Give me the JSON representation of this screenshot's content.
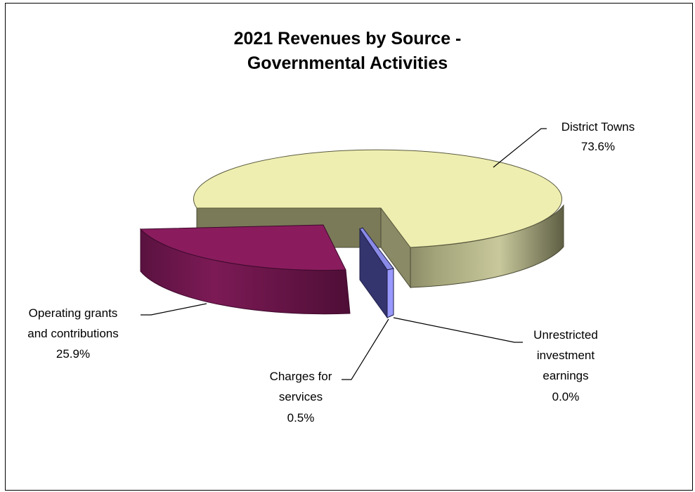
{
  "chart_data": {
    "type": "pie",
    "title_lines": [
      "2021 Revenues by Source -",
      "Governmental Activities"
    ],
    "slices": [
      {
        "name": "District Towns",
        "value": 73.6,
        "label": "73.6%",
        "name_lines": [
          "District Towns"
        ],
        "color": "#eeeeb0"
      },
      {
        "name": "Unrestricted investment earnings",
        "value": 0.0,
        "label": "0.0%",
        "name_lines": [
          "Unrestricted",
          "investment",
          "earnings"
        ],
        "color": "#9999ff"
      },
      {
        "name": "Charges for services",
        "value": 0.5,
        "label": "0.5%",
        "name_lines": [
          "Charges for",
          "services"
        ],
        "color": "#7070e0"
      },
      {
        "name": "Operating grants and contributions",
        "value": 25.9,
        "label": "25.9%",
        "name_lines": [
          "Operating grants",
          "and contributions"
        ],
        "color": "#8a1c5e"
      }
    ],
    "style": "3d-exploded",
    "legend": "none"
  }
}
